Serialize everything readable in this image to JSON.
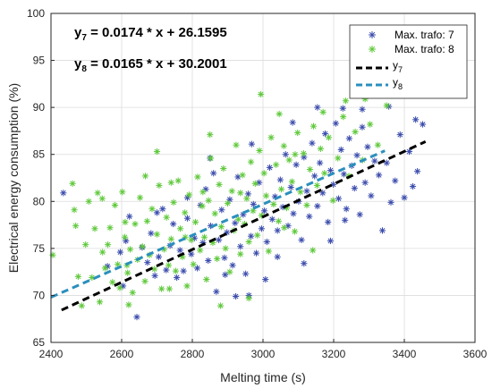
{
  "chart_data": {
    "type": "scatter",
    "xlabel": "Melting time (s)",
    "ylabel": "Electrical energy consumption (%)",
    "xlim": [
      2400,
      3600
    ],
    "ylim": [
      65,
      100
    ],
    "xticks": [
      "2400",
      "2600",
      "2800",
      "3000",
      "3200",
      "3400",
      "3600"
    ],
    "yticks": [
      "65",
      "70",
      "75",
      "80",
      "85",
      "90",
      "95",
      "100"
    ],
    "grid": true,
    "legend_placement": "top-right",
    "annotations": [
      {
        "main": "y",
        "sub": "7",
        "rest": " = 0.0174 * x + 26.1595"
      },
      {
        "main": "y",
        "sub": "8",
        "rest": " = 0.0165 * x + 30.2001"
      }
    ],
    "series": [
      {
        "name": "Max. trafo: 7",
        "marker": "*",
        "color": "#3b4cad",
        "points": [
          [
            2435,
            80.9
          ],
          [
            2560,
            73.1
          ],
          [
            2596,
            74.6
          ],
          [
            2604,
            71.0
          ],
          [
            2612,
            75.8
          ],
          [
            2622,
            78.4
          ],
          [
            2643,
            67.7
          ],
          [
            2658,
            75.1
          ],
          [
            2673,
            73.5
          ],
          [
            2683,
            76.6
          ],
          [
            2694,
            72.1
          ],
          [
            2705,
            74.1
          ],
          [
            2716,
            79.2
          ],
          [
            2726,
            72.7
          ],
          [
            2737,
            75.3
          ],
          [
            2746,
            77.6
          ],
          [
            2756,
            71.9
          ],
          [
            2765,
            74.8
          ],
          [
            2775,
            72.6
          ],
          [
            2786,
            78.2
          ],
          [
            2797,
            74.4
          ],
          [
            2806,
            76.1
          ],
          [
            2814,
            72.9
          ],
          [
            2823,
            79.6
          ],
          [
            2830,
            75.6
          ],
          [
            2838,
            81.3
          ],
          [
            2845,
            73.7
          ],
          [
            2852,
            77.4
          ],
          [
            2860,
            83.0
          ],
          [
            2868,
            70.4
          ],
          [
            2875,
            75.9
          ],
          [
            2883,
            79.1
          ],
          [
            2891,
            74.0
          ],
          [
            2898,
            76.7
          ],
          [
            2906,
            80.2
          ],
          [
            2914,
            73.2
          ],
          [
            2921,
            77.7
          ],
          [
            2929,
            82.6
          ],
          [
            2936,
            75.2
          ],
          [
            2944,
            78.6
          ],
          [
            2951,
            72.3
          ],
          [
            2958,
            80.8
          ],
          [
            2966,
            76.3
          ],
          [
            2973,
            79.7
          ],
          [
            2981,
            74.5
          ],
          [
            2989,
            82.0
          ],
          [
            2996,
            77.1
          ],
          [
            3004,
            79.0
          ],
          [
            3011,
            75.7
          ],
          [
            3019,
            83.6
          ],
          [
            3026,
            78.1
          ],
          [
            3034,
            80.5
          ],
          [
            3041,
            76.9
          ],
          [
            3049,
            82.3
          ],
          [
            3056,
            79.4
          ],
          [
            3064,
            85.0
          ],
          [
            3071,
            77.4
          ],
          [
            3079,
            81.5
          ],
          [
            3086,
            78.7
          ],
          [
            3094,
            83.9
          ],
          [
            3101,
            80.0
          ],
          [
            3109,
            75.9
          ],
          [
            3116,
            84.7
          ],
          [
            3124,
            81.1
          ],
          [
            3131,
            78.4
          ],
          [
            3139,
            86.2
          ],
          [
            3146,
            82.7
          ],
          [
            3154,
            79.5
          ],
          [
            3161,
            84.1
          ],
          [
            3169,
            80.9
          ],
          [
            3176,
            87.2
          ],
          [
            3184,
            77.8
          ],
          [
            3191,
            83.3
          ],
          [
            3199,
            81.8
          ],
          [
            3206,
            88.3
          ],
          [
            3214,
            80.3
          ],
          [
            3221,
            85.5
          ],
          [
            3229,
            82.9
          ],
          [
            3236,
            79.2
          ],
          [
            3244,
            86.7
          ],
          [
            3251,
            83.8
          ],
          [
            3259,
            81.4
          ],
          [
            3266,
            84.9
          ],
          [
            3274,
            78.6
          ],
          [
            3281,
            87.9
          ],
          [
            3289,
            82.0
          ],
          [
            3296,
            85.8
          ],
          [
            3306,
            80.6
          ],
          [
            3316,
            84.3
          ],
          [
            3328,
            82.8
          ],
          [
            3338,
            76.9
          ],
          [
            3350,
            84.1
          ],
          [
            3362,
            79.9
          ],
          [
            3374,
            82.2
          ],
          [
            3388,
            87.1
          ],
          [
            3400,
            80.4
          ],
          [
            3414,
            85.3
          ],
          [
            3424,
            81.6
          ],
          [
            3432,
            88.7
          ],
          [
            3437,
            83.2
          ],
          [
            3452,
            88.2
          ],
          [
            3084,
            88.4
          ],
          [
            2923,
            69.9
          ],
          [
            3007,
            71.7
          ],
          [
            2960,
            70.0
          ],
          [
            3191,
            75.8
          ],
          [
            3116,
            73.4
          ],
          [
            3232,
            78.0
          ],
          [
            2850,
            84.6
          ],
          [
            2968,
            86.1
          ],
          [
            3041,
            74.1
          ],
          [
            2786,
            80.4
          ],
          [
            2700,
            78.8
          ],
          [
            3154,
            90.0
          ],
          [
            3281,
            89.8
          ],
          [
            2893,
            72.2
          ],
          [
            3356,
            90.1
          ],
          [
            3226,
            89.9
          ]
        ]
      },
      {
        "name": "Max. trafo: 8",
        "marker": "*",
        "color": "#5fc93b",
        "points": [
          [
            2405,
            74.3
          ],
          [
            2461,
            81.9
          ],
          [
            2466,
            79.1
          ],
          [
            2470,
            77.4
          ],
          [
            2477,
            72.0
          ],
          [
            2487,
            68.9
          ],
          [
            2498,
            75.4
          ],
          [
            2507,
            80.0
          ],
          [
            2516,
            71.9
          ],
          [
            2524,
            77.1
          ],
          [
            2532,
            80.9
          ],
          [
            2538,
            69.3
          ],
          [
            2546,
            74.6
          ],
          [
            2553,
            72.9
          ],
          [
            2561,
            75.4
          ],
          [
            2567,
            77.2
          ],
          [
            2574,
            71.4
          ],
          [
            2581,
            79.6
          ],
          [
            2589,
            73.3
          ],
          [
            2595,
            70.8
          ],
          [
            2602,
            81.0
          ],
          [
            2609,
            76.2
          ],
          [
            2617,
            72.4
          ],
          [
            2624,
            74.9
          ],
          [
            2631,
            70.3
          ],
          [
            2638,
            77.6
          ],
          [
            2645,
            73.8
          ],
          [
            2652,
            80.4
          ],
          [
            2659,
            75.2
          ],
          [
            2666,
            71.5
          ],
          [
            2672,
            77.9
          ],
          [
            2679,
            74.3
          ],
          [
            2686,
            79.2
          ],
          [
            2693,
            72.8
          ],
          [
            2700,
            76.5
          ],
          [
            2706,
            81.7
          ],
          [
            2713,
            70.7
          ],
          [
            2720,
            74.9
          ],
          [
            2727,
            78.3
          ],
          [
            2733,
            73.2
          ],
          [
            2740,
            76.0
          ],
          [
            2747,
            79.9
          ],
          [
            2753,
            72.6
          ],
          [
            2760,
            82.2
          ],
          [
            2766,
            77.1
          ],
          [
            2772,
            74.1
          ],
          [
            2779,
            78.8
          ],
          [
            2785,
            71.0
          ],
          [
            2791,
            80.7
          ],
          [
            2797,
            75.9
          ],
          [
            2803,
            73.3
          ],
          [
            2809,
            77.8
          ],
          [
            2815,
            82.6
          ],
          [
            2822,
            74.8
          ],
          [
            2828,
            79.5
          ],
          [
            2834,
            76.2
          ],
          [
            2840,
            71.7
          ],
          [
            2846,
            80.1
          ],
          [
            2852,
            84.6
          ],
          [
            2858,
            75.6
          ],
          [
            2864,
            78.7
          ],
          [
            2870,
            73.9
          ],
          [
            2876,
            81.8
          ],
          [
            2882,
            77.3
          ],
          [
            2888,
            83.5
          ],
          [
            2894,
            75.0
          ],
          [
            2900,
            79.8
          ],
          [
            2906,
            72.5
          ],
          [
            2912,
            81.1
          ],
          [
            2918,
            76.9
          ],
          [
            2924,
            86.0
          ],
          [
            2930,
            78.1
          ],
          [
            2936,
            74.4
          ],
          [
            2942,
            82.8
          ],
          [
            2948,
            77.6
          ],
          [
            2954,
            80.3
          ],
          [
            2960,
            75.7
          ],
          [
            2966,
            84.2
          ],
          [
            2972,
            79.0
          ],
          [
            2978,
            81.9
          ],
          [
            2984,
            76.4
          ],
          [
            2990,
            85.4
          ],
          [
            2996,
            78.5
          ],
          [
            3003,
            83.0
          ],
          [
            3009,
            80.6
          ],
          [
            3016,
            74.7
          ],
          [
            3023,
            86.8
          ],
          [
            3030,
            79.7
          ],
          [
            3037,
            83.9
          ],
          [
            3044,
            77.9
          ],
          [
            3052,
            81.3
          ],
          [
            3059,
            85.9
          ],
          [
            3067,
            79.3
          ],
          [
            3074,
            84.4
          ],
          [
            3082,
            82.1
          ],
          [
            3090,
            76.8
          ],
          [
            3098,
            87.3
          ],
          [
            3106,
            81.0
          ],
          [
            3115,
            85.1
          ],
          [
            3124,
            79.6
          ],
          [
            3133,
            83.4
          ],
          [
            3143,
            88.0
          ],
          [
            3153,
            81.7
          ],
          [
            3163,
            85.6
          ],
          [
            3174,
            83.0
          ],
          [
            3186,
            86.8
          ],
          [
            3198,
            80.1
          ],
          [
            3212,
            84.6
          ],
          [
            3227,
            89.0
          ],
          [
            3243,
            82.7
          ],
          [
            3261,
            87.4
          ],
          [
            3282,
            84.4
          ],
          [
            3303,
            88.2
          ],
          [
            3325,
            86.0
          ],
          [
            3350,
            90.2
          ],
          [
            2545,
            80.3
          ],
          [
            2615,
            73.2
          ],
          [
            2700,
            85.3
          ],
          [
            2880,
            68.9
          ],
          [
            2994,
            91.4
          ],
          [
            3046,
            89.3
          ],
          [
            2960,
            69.7
          ],
          [
            2735,
            70.7
          ],
          [
            2850,
            87.1
          ],
          [
            3141,
            74.8
          ],
          [
            2780,
            76.2
          ],
          [
            2936,
            80.9
          ],
          [
            3060,
            77.2
          ],
          [
            3234,
            90.7
          ],
          [
            2610,
            77.8
          ],
          [
            3170,
            89.5
          ],
          [
            2830,
            81.0
          ],
          [
            2667,
            82.7
          ],
          [
            3091,
            85.0
          ],
          [
            3289,
            90.9
          ],
          [
            2740,
            82.0
          ],
          [
            2620,
            69.0
          ]
        ]
      }
    ],
    "fit_lines": [
      {
        "name": "y",
        "name_sub": "7",
        "slope": 0.0174,
        "intercept": 26.1595,
        "x_range": [
          2430,
          3460
        ],
        "color": "#000000",
        "dash": "dashed"
      },
      {
        "name": "y",
        "name_sub": "8",
        "slope": 0.0165,
        "intercept": 30.2001,
        "x_range": [
          2400,
          3345
        ],
        "color": "#2a8fbd",
        "dash": "dashed"
      }
    ]
  }
}
